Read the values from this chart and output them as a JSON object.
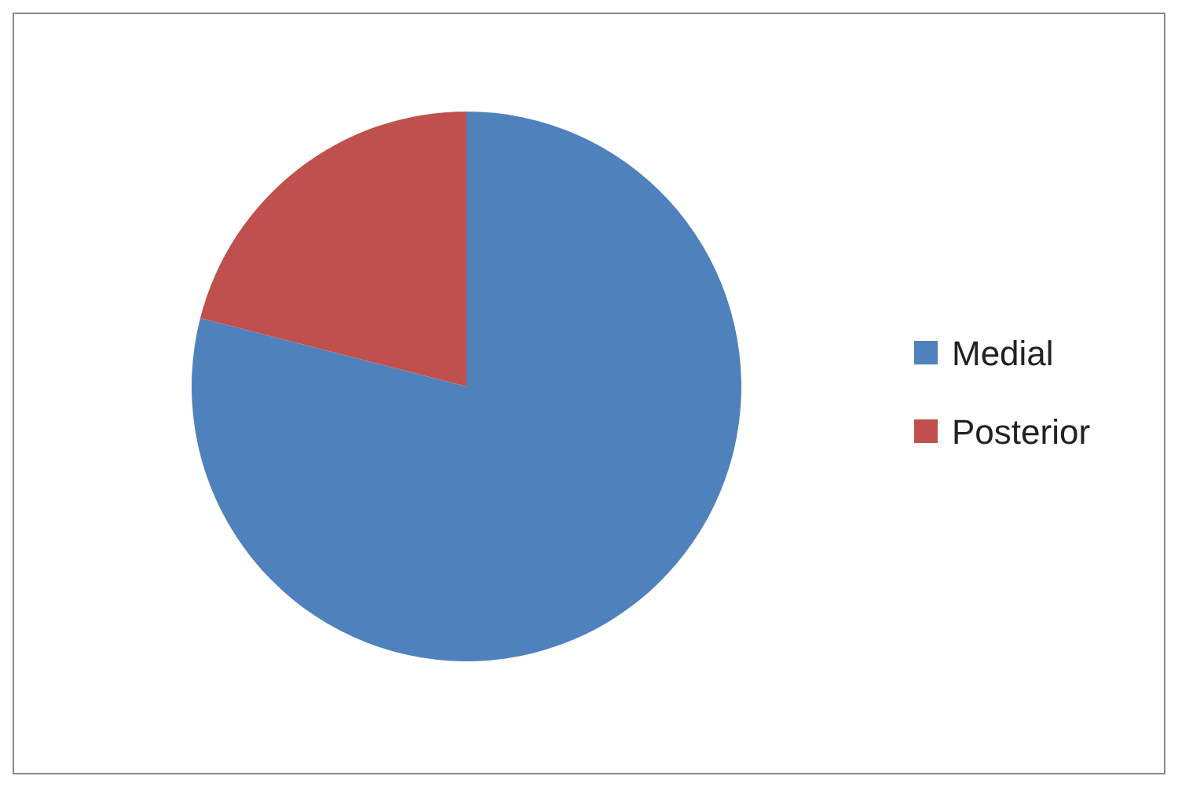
{
  "chart_data": {
    "type": "pie",
    "categories": [
      "Medial",
      "Posterior"
    ],
    "values": [
      79,
      21
    ],
    "colors": [
      "#4f81bd",
      "#c0504d"
    ],
    "legend": "right"
  }
}
